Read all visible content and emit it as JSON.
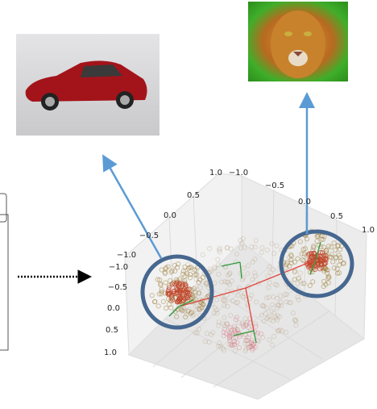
{
  "axes": {
    "top_left": [
      "1.0",
      "0.5",
      "0.0",
      "−0.5",
      "−1.0"
    ],
    "top_right": [
      "−1.0",
      "−0.5",
      "0.0",
      "0.5",
      "1.0"
    ],
    "left": [
      "−1.0",
      "−0.5",
      "0.0",
      "0.5",
      "1.0"
    ]
  }
}
